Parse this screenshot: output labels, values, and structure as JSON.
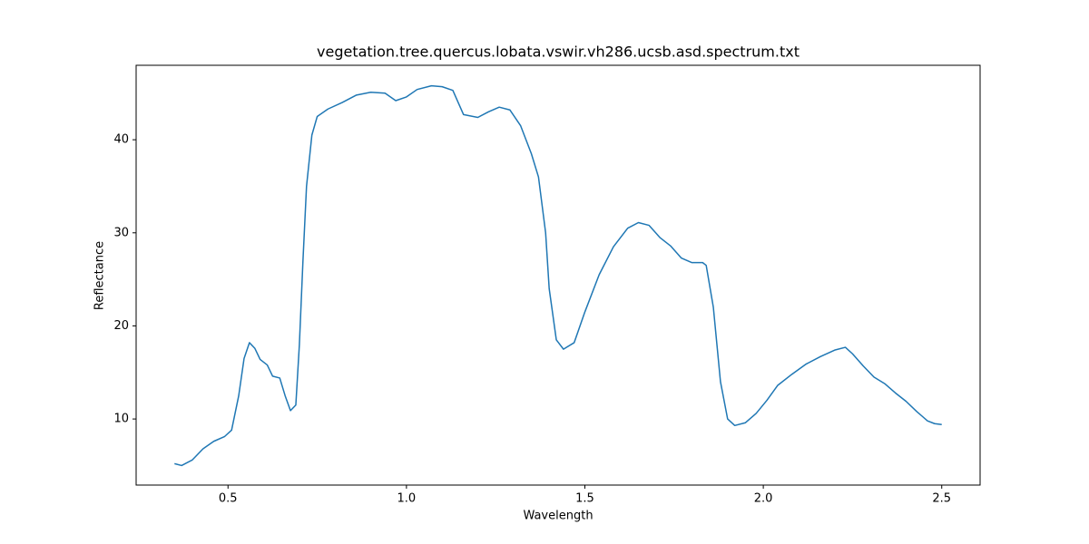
{
  "chart_data": {
    "type": "line",
    "title": "vegetation.tree.quercus.lobata.vswir.vh286.ucsb.asd.spectrum.txt",
    "x_label": "Wavelength",
    "y_label": "Reflectance",
    "x": [
      0.35,
      0.37,
      0.4,
      0.43,
      0.46,
      0.49,
      0.51,
      0.53,
      0.545,
      0.56,
      0.575,
      0.59,
      0.61,
      0.625,
      0.645,
      0.66,
      0.675,
      0.69,
      0.7,
      0.71,
      0.72,
      0.735,
      0.75,
      0.78,
      0.82,
      0.86,
      0.9,
      0.94,
      0.97,
      1.0,
      1.03,
      1.07,
      1.1,
      1.13,
      1.16,
      1.2,
      1.23,
      1.26,
      1.29,
      1.32,
      1.35,
      1.37,
      1.39,
      1.4,
      1.42,
      1.44,
      1.47,
      1.5,
      1.54,
      1.58,
      1.62,
      1.65,
      1.68,
      1.71,
      1.74,
      1.77,
      1.8,
      1.83,
      1.84,
      1.86,
      1.88,
      1.9,
      1.92,
      1.95,
      1.98,
      2.01,
      2.04,
      2.08,
      2.12,
      2.16,
      2.2,
      2.23,
      2.25,
      2.28,
      2.31,
      2.34,
      2.37,
      2.4,
      2.43,
      2.46,
      2.48,
      2.5
    ],
    "series": [
      {
        "color": "#1f77b4",
        "values": [
          5.2,
          5.0,
          5.6,
          6.8,
          7.6,
          8.1,
          8.8,
          12.5,
          16.5,
          18.2,
          17.6,
          16.4,
          15.8,
          14.6,
          14.4,
          12.5,
          10.9,
          11.5,
          18,
          27,
          35,
          40.5,
          42.5,
          43.3,
          44.0,
          44.8,
          45.1,
          45.0,
          44.2,
          44.6,
          45.4,
          45.8,
          45.7,
          45.3,
          42.7,
          42.4,
          43.0,
          43.5,
          43.2,
          41.5,
          38.5,
          36.0,
          30,
          24,
          18.5,
          17.5,
          18.2,
          21.5,
          25.5,
          28.5,
          30.5,
          31.1,
          30.8,
          29.5,
          28.6,
          27.3,
          26.8,
          26.8,
          26.5,
          22,
          14,
          10,
          9.3,
          9.6,
          10.6,
          12.0,
          13.6,
          14.8,
          15.9,
          16.7,
          17.4,
          17.7,
          17.0,
          15.7,
          14.5,
          13.8,
          12.8,
          11.9,
          10.8,
          9.8,
          9.5,
          9.4
        ]
      }
    ],
    "xlim": [
      0.2425,
      2.6075
    ],
    "ylim": [
      2.9,
      48.0
    ],
    "xticks": [
      0.5,
      {
        "value": 1.0,
        "label": "1.0"
      },
      1.5,
      {
        "value": 2.0,
        "label": "2.0"
      },
      2.5
    ],
    "yticks": [
      10,
      20,
      30,
      40
    ]
  }
}
